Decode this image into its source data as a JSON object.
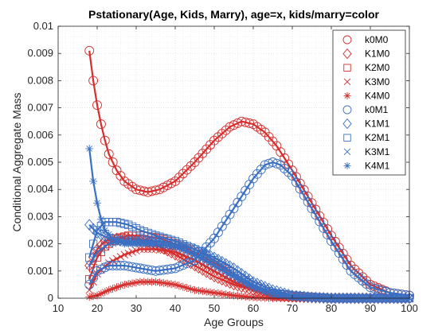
{
  "chart_data": {
    "type": "line",
    "title": "Pstationary(Age, Kids, Marry), age=x, kids/marry=color",
    "xlabel": "Age Groups",
    "ylabel": "Conditional Aggregate Mass",
    "xlim": [
      10,
      100
    ],
    "ylim": [
      0,
      0.01
    ],
    "x_ticks": [
      10,
      20,
      30,
      40,
      50,
      60,
      70,
      80,
      90,
      100
    ],
    "x_tick_labels": [
      "10",
      "20",
      "30",
      "40",
      "50",
      "60",
      "70",
      "80",
      "90",
      "100"
    ],
    "y_ticks": [
      0,
      0.001,
      0.002,
      0.003,
      0.004,
      0.005,
      0.006,
      0.007,
      0.008,
      0.009,
      0.01
    ],
    "y_tick_labels": [
      "0",
      "0.001",
      "0.002",
      "0.003",
      "0.004",
      "0.005",
      "0.006",
      "0.007",
      "0.008",
      "0.009",
      "0.01"
    ],
    "grid": "minor-dotted",
    "legend_position": "top-right",
    "colors": {
      "M0": "#d62d2d",
      "M1": "#3a6fc2"
    },
    "series": [
      {
        "name": "k0M0",
        "marker": "circle",
        "color": "#d62d2d",
        "points": [
          [
            18,
            0.0091
          ],
          [
            19,
            0.008
          ],
          [
            20,
            0.0071
          ],
          [
            21,
            0.0064
          ],
          [
            22,
            0.0058
          ],
          [
            23,
            0.0053
          ],
          [
            25,
            0.0047
          ],
          [
            27,
            0.0043
          ],
          [
            30,
            0.004
          ],
          [
            33,
            0.0039
          ],
          [
            36,
            0.004
          ],
          [
            40,
            0.0043
          ],
          [
            45,
            0.005
          ],
          [
            50,
            0.0058
          ],
          [
            54,
            0.0063
          ],
          [
            57,
            0.0065
          ],
          [
            60,
            0.0064
          ],
          [
            63,
            0.0061
          ],
          [
            66,
            0.0056
          ],
          [
            70,
            0.0047
          ],
          [
            75,
            0.0035
          ],
          [
            80,
            0.0023
          ],
          [
            85,
            0.0012
          ],
          [
            90,
            0.0005
          ],
          [
            95,
            0.0002
          ],
          [
            100,
            0.0001
          ]
        ]
      },
      {
        "name": "K1M0",
        "marker": "diamond",
        "color": "#d62d2d",
        "points": [
          [
            18,
            0.0012
          ],
          [
            20,
            0.0018
          ],
          [
            22,
            0.0021
          ],
          [
            25,
            0.0022
          ],
          [
            28,
            0.0022
          ],
          [
            32,
            0.0021
          ],
          [
            36,
            0.0019
          ],
          [
            40,
            0.0016
          ],
          [
            45,
            0.0012
          ],
          [
            50,
            0.0008
          ],
          [
            55,
            0.0005
          ],
          [
            60,
            0.0003
          ],
          [
            65,
            0.0001
          ],
          [
            70,
            5e-05
          ],
          [
            80,
            0
          ],
          [
            90,
            0
          ],
          [
            100,
            0
          ]
        ]
      },
      {
        "name": "K2M0",
        "marker": "square",
        "color": "#d62d2d",
        "points": [
          [
            18,
            0.0007
          ],
          [
            20,
            0.0015
          ],
          [
            22,
            0.0019
          ],
          [
            25,
            0.0022
          ],
          [
            28,
            0.0023
          ],
          [
            32,
            0.0023
          ],
          [
            36,
            0.0022
          ],
          [
            40,
            0.002
          ],
          [
            45,
            0.0017
          ],
          [
            50,
            0.0013
          ],
          [
            55,
            0.0009
          ],
          [
            60,
            0.0005
          ],
          [
            65,
            0.0002
          ],
          [
            70,
            0.0001
          ],
          [
            80,
            0
          ],
          [
            90,
            0
          ],
          [
            100,
            0
          ]
        ]
      },
      {
        "name": "K3M0",
        "marker": "x",
        "color": "#d62d2d",
        "points": [
          [
            18,
            0.0003
          ],
          [
            20,
            0.0009
          ],
          [
            23,
            0.0013
          ],
          [
            27,
            0.0016
          ],
          [
            31,
            0.0018
          ],
          [
            35,
            0.0018
          ],
          [
            40,
            0.0017
          ],
          [
            45,
            0.0014
          ],
          [
            50,
            0.001
          ],
          [
            55,
            0.0006
          ],
          [
            60,
            0.0003
          ],
          [
            65,
            0.0001
          ],
          [
            70,
            0
          ],
          [
            80,
            0
          ],
          [
            90,
            0
          ],
          [
            100,
            0
          ]
        ]
      },
      {
        "name": "K4M0",
        "marker": "star",
        "color": "#d62d2d",
        "points": [
          [
            18,
            5e-05
          ],
          [
            20,
            0.0001
          ],
          [
            23,
            0.0003
          ],
          [
            27,
            0.0005
          ],
          [
            31,
            0.0006
          ],
          [
            35,
            0.0006
          ],
          [
            40,
            0.0005
          ],
          [
            45,
            0.0003
          ],
          [
            50,
            0.0002
          ],
          [
            55,
            0.0001
          ],
          [
            60,
            3e-05
          ],
          [
            65,
            0
          ],
          [
            70,
            0
          ],
          [
            80,
            0
          ],
          [
            90,
            0
          ],
          [
            100,
            0
          ]
        ]
      },
      {
        "name": "k0M1",
        "marker": "circle",
        "color": "#3a6fc2",
        "points": [
          [
            18,
            0.0005
          ],
          [
            20,
            0.001
          ],
          [
            23,
            0.0012
          ],
          [
            27,
            0.0012
          ],
          [
            31,
            0.0011
          ],
          [
            35,
            0.001
          ],
          [
            40,
            0.0011
          ],
          [
            45,
            0.0014
          ],
          [
            50,
            0.0022
          ],
          [
            55,
            0.0033
          ],
          [
            60,
            0.0044
          ],
          [
            63,
            0.0049
          ],
          [
            65,
            0.005
          ],
          [
            67,
            0.0049
          ],
          [
            70,
            0.0045
          ],
          [
            75,
            0.0033
          ],
          [
            80,
            0.0021
          ],
          [
            85,
            0.001
          ],
          [
            90,
            0.0004
          ],
          [
            95,
            0.0002
          ],
          [
            100,
            0.0001
          ]
        ]
      },
      {
        "name": "K1M1",
        "marker": "diamond",
        "color": "#3a6fc2",
        "points": [
          [
            18,
            0.0027
          ],
          [
            20,
            0.0024
          ],
          [
            23,
            0.0022
          ],
          [
            27,
            0.0021
          ],
          [
            31,
            0.0021
          ],
          [
            35,
            0.0021
          ],
          [
            40,
            0.002
          ],
          [
            45,
            0.0018
          ],
          [
            50,
            0.0015
          ],
          [
            55,
            0.0011
          ],
          [
            60,
            0.0006
          ],
          [
            65,
            0.0003
          ],
          [
            70,
            0.0001
          ],
          [
            75,
            3e-05
          ],
          [
            80,
            0
          ],
          [
            90,
            0
          ],
          [
            100,
            0
          ]
        ]
      },
      {
        "name": "K2M1",
        "marker": "square",
        "color": "#3a6fc2",
        "points": [
          [
            18,
            0.0015
          ],
          [
            20,
            0.0025
          ],
          [
            22,
            0.0028
          ],
          [
            25,
            0.0028
          ],
          [
            28,
            0.0027
          ],
          [
            31,
            0.0025
          ],
          [
            35,
            0.0023
          ],
          [
            40,
            0.0021
          ],
          [
            45,
            0.0018
          ],
          [
            50,
            0.0014
          ],
          [
            55,
            0.0009
          ],
          [
            60,
            0.0005
          ],
          [
            65,
            0.0002
          ],
          [
            70,
            0.0001
          ],
          [
            80,
            0
          ],
          [
            90,
            0
          ],
          [
            100,
            0
          ]
        ]
      },
      {
        "name": "K3M1",
        "marker": "x",
        "color": "#3a6fc2",
        "points": [
          [
            18,
            0.0012
          ],
          [
            20,
            0.0017
          ],
          [
            23,
            0.002
          ],
          [
            27,
            0.0021
          ],
          [
            31,
            0.0021
          ],
          [
            35,
            0.002
          ],
          [
            40,
            0.0019
          ],
          [
            45,
            0.0016
          ],
          [
            50,
            0.0012
          ],
          [
            55,
            0.0008
          ],
          [
            60,
            0.0004
          ],
          [
            65,
            0.0002
          ],
          [
            70,
            5e-05
          ],
          [
            80,
            0
          ],
          [
            90,
            0
          ],
          [
            100,
            0
          ]
        ]
      },
      {
        "name": "K4M1",
        "marker": "star",
        "color": "#3a6fc2",
        "points": [
          [
            18,
            0.0055
          ],
          [
            19,
            0.0043
          ],
          [
            20,
            0.0035
          ],
          [
            21,
            0.0029
          ],
          [
            22,
            0.0025
          ],
          [
            24,
            0.0022
          ],
          [
            27,
            0.002
          ],
          [
            31,
            0.002
          ],
          [
            35,
            0.002
          ],
          [
            40,
            0.0019
          ],
          [
            45,
            0.0016
          ],
          [
            50,
            0.0012
          ],
          [
            55,
            0.0008
          ],
          [
            60,
            0.0004
          ],
          [
            65,
            0.0002
          ],
          [
            70,
            5e-05
          ],
          [
            80,
            0
          ],
          [
            90,
            0
          ],
          [
            100,
            0
          ]
        ]
      }
    ]
  }
}
